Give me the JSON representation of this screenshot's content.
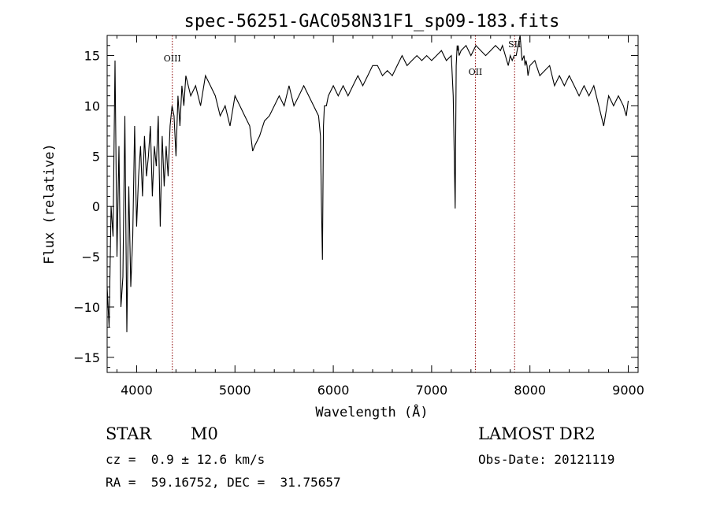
{
  "chart_data": {
    "type": "line",
    "title": "spec-56251-GAC058N31F1_sp09-183.fits",
    "xlabel": "Wavelength (Å)",
    "ylabel": "Flux (relative)",
    "xlim": [
      3700,
      9100
    ],
    "ylim": [
      -16.5,
      17
    ],
    "x_ticks": [
      4000,
      5000,
      6000,
      7000,
      8000,
      9000
    ],
    "y_ticks": [
      -15,
      -10,
      -5,
      0,
      5,
      10,
      15
    ],
    "grid": false,
    "line_color": "#000000",
    "marker_color": "#8b0000",
    "lines": [
      {
        "label": "OIII",
        "wavelength": 4363
      },
      {
        "label": "OII",
        "wavelength": 7445
      },
      {
        "label": "SII",
        "wavelength": 7844
      }
    ],
    "spectrum": {
      "x": [
        3700,
        3720,
        3740,
        3760,
        3780,
        3800,
        3820,
        3840,
        3860,
        3880,
        3900,
        3920,
        3940,
        3960,
        3980,
        4000,
        4020,
        4040,
        4060,
        4080,
        4100,
        4120,
        4140,
        4160,
        4180,
        4200,
        4220,
        4240,
        4260,
        4280,
        4300,
        4320,
        4340,
        4360,
        4380,
        4400,
        4420,
        4440,
        4460,
        4480,
        4500,
        4550,
        4600,
        4650,
        4700,
        4750,
        4800,
        4850,
        4900,
        4950,
        5000,
        5050,
        5100,
        5150,
        5180,
        5200,
        5250,
        5300,
        5350,
        5400,
        5450,
        5500,
        5550,
        5600,
        5650,
        5700,
        5750,
        5800,
        5850,
        5870,
        5880,
        5890,
        5895,
        5900,
        5910,
        5930,
        5950,
        6000,
        6050,
        6100,
        6150,
        6200,
        6250,
        6300,
        6350,
        6400,
        6450,
        6500,
        6550,
        6600,
        6650,
        6700,
        6750,
        6800,
        6850,
        6900,
        6950,
        7000,
        7050,
        7100,
        7150,
        7200,
        7220,
        7240,
        7250,
        7255,
        7260,
        7265,
        7270,
        7280,
        7300,
        7350,
        7400,
        7450,
        7500,
        7550,
        7600,
        7650,
        7700,
        7720,
        7750,
        7780,
        7800,
        7820,
        7840,
        7860,
        7880,
        7900,
        7920,
        7940,
        7950,
        7960,
        7970,
        7980,
        8000,
        8050,
        8100,
        8150,
        8200,
        8250,
        8300,
        8350,
        8400,
        8450,
        8500,
        8550,
        8600,
        8650,
        8700,
        8750,
        8800,
        8850,
        8900,
        8950,
        8980,
        9000
      ],
      "y": [
        -8,
        -12,
        0,
        -3,
        14.5,
        -5,
        6,
        -10,
        -7,
        9,
        -12.5,
        2,
        -8,
        -3,
        8,
        -2,
        3,
        6,
        1,
        7,
        3,
        5,
        8,
        1,
        6,
        4,
        9,
        -2,
        7,
        2,
        6,
        3,
        8,
        10,
        9,
        5,
        11,
        8,
        12,
        10,
        13,
        11,
        12,
        10,
        13,
        12,
        11,
        9,
        10,
        8,
        11,
        10,
        9,
        8,
        5.5,
        6,
        7,
        8.5,
        9,
        10,
        11,
        10,
        12,
        10,
        11,
        12,
        11,
        10,
        9,
        7,
        0,
        -5.3,
        2,
        8,
        10,
        10,
        11,
        12,
        11,
        12,
        11,
        12,
        13,
        12,
        13,
        14,
        14,
        13,
        13.5,
        13,
        14,
        15,
        14,
        14.5,
        15,
        14.5,
        15,
        14.5,
        15,
        15.5,
        14.5,
        15,
        11,
        -0.2,
        14,
        15,
        16,
        15.5,
        16,
        15,
        15.5,
        16,
        15,
        16,
        15.5,
        15,
        15.5,
        16,
        15.5,
        16,
        15,
        14,
        15,
        14.5,
        15,
        15,
        16,
        18,
        14.5,
        15,
        14,
        14.5,
        14,
        13,
        14,
        14.5,
        13,
        13.5,
        14,
        12,
        13,
        12,
        13,
        12,
        11,
        12,
        11,
        12,
        10,
        8,
        11,
        10,
        11,
        10,
        9,
        10.5
      ]
    }
  },
  "footer": {
    "object_class": "STAR",
    "subclass": "M0",
    "survey": "LAMOST DR2",
    "redshift": "cz =  0.9 ± 12.6 km/s",
    "obs_date": "Obs-Date: 20121119",
    "coords": "RA =  59.16752, DEC =  31.75657"
  }
}
